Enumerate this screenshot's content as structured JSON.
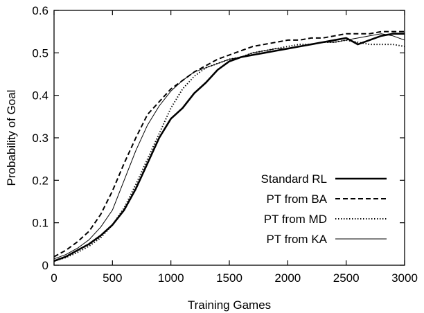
{
  "chart_data": {
    "type": "line",
    "title": "",
    "xlabel": "Training Games",
    "ylabel": "Probability of Goal",
    "xlim": [
      0,
      3000
    ],
    "ylim": [
      0,
      0.6
    ],
    "xticks": [
      0,
      500,
      1000,
      1500,
      2000,
      2500,
      3000
    ],
    "yticks": [
      0,
      0.1,
      0.2,
      0.3,
      0.4,
      0.5,
      0.6
    ],
    "grid": false,
    "legend_position": "bottom-right",
    "x": [
      0,
      100,
      200,
      300,
      400,
      500,
      600,
      700,
      800,
      900,
      1000,
      1100,
      1200,
      1300,
      1400,
      1500,
      1600,
      1700,
      1800,
      1900,
      2000,
      2100,
      2200,
      2300,
      2400,
      2500,
      2600,
      2700,
      2800,
      2900,
      3000
    ],
    "series": [
      {
        "name": "Standard RL",
        "style": "thick-solid",
        "values": [
          0.01,
          0.02,
          0.035,
          0.05,
          0.07,
          0.095,
          0.13,
          0.18,
          0.24,
          0.3,
          0.345,
          0.37,
          0.405,
          0.43,
          0.46,
          0.48,
          0.49,
          0.495,
          0.5,
          0.505,
          0.51,
          0.515,
          0.52,
          0.525,
          0.53,
          0.535,
          0.52,
          0.53,
          0.54,
          0.545,
          0.545
        ]
      },
      {
        "name": "PT from BA",
        "style": "dashed",
        "values": [
          0.02,
          0.035,
          0.055,
          0.08,
          0.12,
          0.175,
          0.24,
          0.3,
          0.355,
          0.385,
          0.415,
          0.435,
          0.455,
          0.47,
          0.485,
          0.495,
          0.505,
          0.515,
          0.52,
          0.525,
          0.53,
          0.53,
          0.535,
          0.535,
          0.54,
          0.545,
          0.545,
          0.545,
          0.55,
          0.55,
          0.55
        ]
      },
      {
        "name": "PT from MD",
        "style": "dotted",
        "values": [
          0.01,
          0.018,
          0.03,
          0.045,
          0.065,
          0.095,
          0.135,
          0.19,
          0.25,
          0.31,
          0.37,
          0.415,
          0.445,
          0.465,
          0.475,
          0.485,
          0.49,
          0.5,
          0.505,
          0.51,
          0.515,
          0.52,
          0.52,
          0.525,
          0.525,
          0.53,
          0.525,
          0.52,
          0.52,
          0.52,
          0.515
        ]
      },
      {
        "name": "PT from KA",
        "style": "thin-solid",
        "values": [
          0.015,
          0.025,
          0.04,
          0.06,
          0.09,
          0.13,
          0.2,
          0.27,
          0.33,
          0.375,
          0.41,
          0.435,
          0.455,
          0.465,
          0.475,
          0.485,
          0.49,
          0.5,
          0.505,
          0.51,
          0.51,
          0.515,
          0.52,
          0.525,
          0.525,
          0.53,
          0.535,
          0.54,
          0.545,
          0.54,
          0.53
        ]
      }
    ]
  }
}
